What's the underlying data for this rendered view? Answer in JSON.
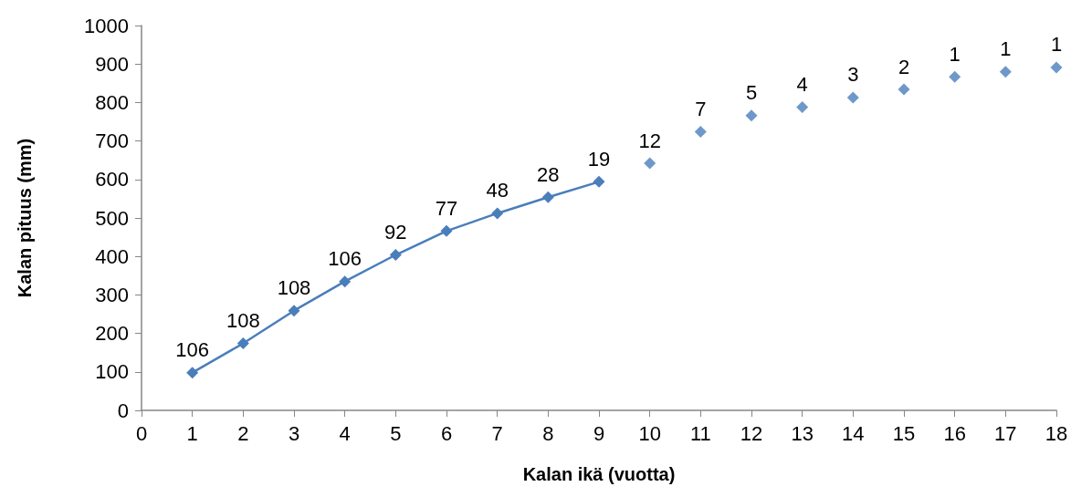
{
  "chart_data": {
    "type": "line",
    "xlabel": "Kalan ikä (vuotta)",
    "ylabel": "Kalan pituus (mm)",
    "series": [
      {
        "color": "#4a7ebb",
        "x": [
          1,
          2,
          3,
          4,
          5,
          6,
          7,
          8,
          9
        ],
        "values": [
          98,
          174,
          259,
          335,
          404,
          466,
          512,
          554,
          594
        ]
      },
      {
        "type": "scatter",
        "color": "#4a7ebb",
        "x": [
          10,
          11,
          12,
          13,
          14,
          15,
          16,
          17,
          18
        ],
        "values": [
          642,
          724,
          766,
          788,
          813,
          834,
          867,
          880,
          891
        ]
      }
    ],
    "annotations": [
      {
        "text": "106",
        "x": 1,
        "y": 98
      },
      {
        "text": "108",
        "x": 2,
        "y": 174
      },
      {
        "text": "108",
        "x": 3,
        "y": 259
      },
      {
        "text": "106",
        "x": 4,
        "y": 335
      },
      {
        "text": "92",
        "x": 5,
        "y": 404
      },
      {
        "text": "77",
        "x": 6,
        "y": 466
      },
      {
        "text": "48",
        "x": 7,
        "y": 512
      },
      {
        "text": "28",
        "x": 8,
        "y": 554
      },
      {
        "text": "19",
        "x": 9,
        "y": 594
      },
      {
        "text": "12",
        "x": 10,
        "y": 642
      },
      {
        "text": "7",
        "x": 11,
        "y": 724
      },
      {
        "text": "5",
        "x": 12,
        "y": 766
      },
      {
        "text": "4",
        "x": 13,
        "y": 788
      },
      {
        "text": "3",
        "x": 14,
        "y": 813
      },
      {
        "text": "2",
        "x": 15,
        "y": 834
      },
      {
        "text": "1",
        "x": 16,
        "y": 867
      },
      {
        "text": "1",
        "x": 17,
        "y": 880
      },
      {
        "text": "1",
        "x": 18,
        "y": 891
      }
    ],
    "xlim": [
      0,
      18
    ],
    "xticks": [
      0,
      1,
      2,
      3,
      4,
      5,
      6,
      7,
      8,
      9,
      10,
      11,
      12,
      13,
      14,
      15,
      16,
      17,
      18
    ],
    "ylim": [
      0,
      1000
    ],
    "yticks": [
      0,
      100,
      200,
      300,
      400,
      500,
      600,
      700,
      800,
      900,
      1000
    ],
    "grid": false,
    "marker": "diamond",
    "line_style": "solid"
  }
}
